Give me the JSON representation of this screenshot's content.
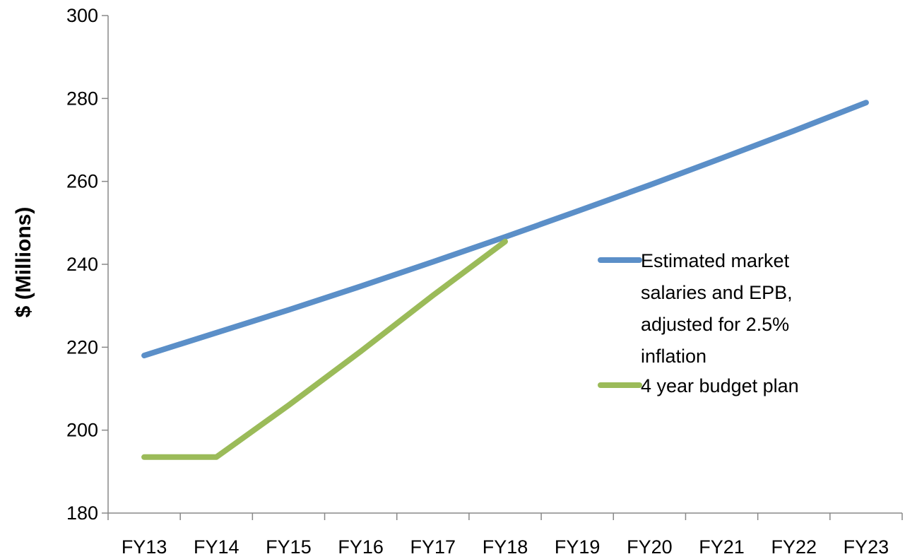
{
  "chart_data": {
    "type": "line",
    "title": "",
    "xlabel": "",
    "ylabel": "$ (Millions)",
    "categories": [
      "FY13",
      "FY14",
      "FY15",
      "FY16",
      "FY17",
      "FY18",
      "FY19",
      "FY20",
      "FY21",
      "FY22",
      "FY23"
    ],
    "ylim": [
      180,
      300
    ],
    "yticks": [
      180,
      200,
      220,
      240,
      260,
      280,
      300
    ],
    "grid": false,
    "legend_position": "right",
    "series": [
      {
        "name": "Estimated market salaries and EPB, adjusted for 2.5% inflation",
        "legend_lines": [
          "Estimated market",
          "salaries and EPB,",
          "adjusted for 2.5%",
          "inflation"
        ],
        "color": "#5B8FC8",
        "values": [
          218,
          223.5,
          229,
          234.7,
          240.6,
          246.6,
          252.8,
          259.1,
          265.6,
          272.2,
          279
        ]
      },
      {
        "name": "4 year budget plan",
        "legend_lines": [
          "4 year budget plan"
        ],
        "color": "#9BBB59",
        "values": [
          193.5,
          193.5,
          206,
          219,
          232.5,
          245.5,
          null,
          null,
          null,
          null,
          null
        ]
      }
    ]
  }
}
